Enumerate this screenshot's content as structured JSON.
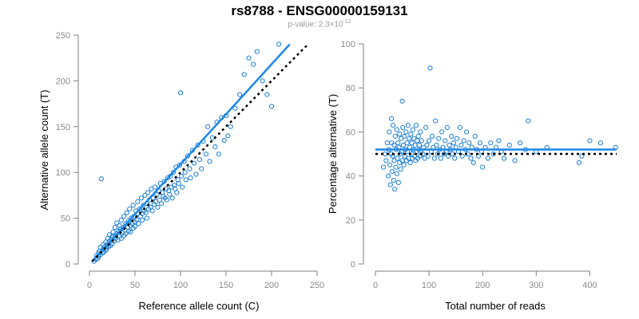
{
  "figure": {
    "title": "rs8788 - ENSG00000159131",
    "subtitle_prefix": "p-value: 2.3×10",
    "subtitle_exponent": "-12"
  },
  "colors": {
    "points": "#1e7fd6",
    "fit_line": "#1e88e5",
    "reference_line": "#000000",
    "axis": "#7f7f7f",
    "tick_label": "#8a8a8a"
  },
  "chart_data": [
    {
      "type": "scatter",
      "xlabel": "Reference allele count (C)",
      "ylabel": "Alternative allele count (T)",
      "xlim": [
        0,
        250
      ],
      "ylim": [
        0,
        250
      ],
      "xticks": [
        0,
        50,
        100,
        150,
        200,
        250
      ],
      "yticks": [
        0,
        50,
        100,
        150,
        200,
        250
      ],
      "grid": false,
      "lines": [
        {
          "name": "fit",
          "style": "solid",
          "x": [
            3,
            220
          ],
          "y": [
            3,
            240
          ]
        },
        {
          "name": "reference",
          "style": "dotted",
          "x": [
            3,
            240
          ],
          "y": [
            3,
            240
          ]
        }
      ],
      "points": [
        [
          5,
          3
        ],
        [
          7,
          5
        ],
        [
          8,
          9
        ],
        [
          9,
          6
        ],
        [
          10,
          12
        ],
        [
          10,
          8
        ],
        [
          11,
          14
        ],
        [
          12,
          10
        ],
        [
          12,
          18
        ],
        [
          13,
          93
        ],
        [
          14,
          12
        ],
        [
          15,
          16
        ],
        [
          15,
          21
        ],
        [
          16,
          13
        ],
        [
          17,
          19
        ],
        [
          18,
          15
        ],
        [
          18,
          24
        ],
        [
          19,
          17
        ],
        [
          20,
          22
        ],
        [
          20,
          28
        ],
        [
          21,
          19
        ],
        [
          22,
          25
        ],
        [
          22,
          32
        ],
        [
          23,
          20
        ],
        [
          24,
          27
        ],
        [
          25,
          30
        ],
        [
          25,
          22
        ],
        [
          26,
          35
        ],
        [
          27,
          25
        ],
        [
          28,
          31
        ],
        [
          28,
          40
        ],
        [
          29,
          28
        ],
        [
          30,
          33
        ],
        [
          30,
          45
        ],
        [
          31,
          26
        ],
        [
          32,
          36
        ],
        [
          33,
          30
        ],
        [
          33,
          42
        ],
        [
          34,
          38
        ],
        [
          35,
          28
        ],
        [
          35,
          48
        ],
        [
          36,
          34
        ],
        [
          37,
          40
        ],
        [
          38,
          31
        ],
        [
          38,
          52
        ],
        [
          39,
          37
        ],
        [
          40,
          44
        ],
        [
          40,
          33
        ],
        [
          41,
          56
        ],
        [
          42,
          40
        ],
        [
          43,
          36
        ],
        [
          43,
          47
        ],
        [
          44,
          60
        ],
        [
          45,
          42
        ],
        [
          45,
          35
        ],
        [
          46,
          50
        ],
        [
          47,
          44
        ],
        [
          48,
          64
        ],
        [
          48,
          39
        ],
        [
          49,
          52
        ],
        [
          50,
          46
        ],
        [
          50,
          41
        ],
        [
          51,
          58
        ],
        [
          52,
          48
        ],
        [
          53,
          55
        ],
        [
          53,
          68
        ],
        [
          54,
          44
        ],
        [
          55,
          60
        ],
        [
          56,
          52
        ],
        [
          57,
          72
        ],
        [
          58,
          55
        ],
        [
          58,
          48
        ],
        [
          59,
          64
        ],
        [
          60,
          58
        ],
        [
          61,
          75
        ],
        [
          62,
          56
        ],
        [
          63,
          66
        ],
        [
          63,
          50
        ],
        [
          64,
          78
        ],
        [
          65,
          60
        ],
        [
          66,
          70
        ],
        [
          67,
          62
        ],
        [
          68,
          82
        ],
        [
          69,
          58
        ],
        [
          70,
          72
        ],
        [
          71,
          65
        ],
        [
          72,
          84
        ],
        [
          73,
          68
        ],
        [
          74,
          76
        ],
        [
          75,
          62
        ],
        [
          76,
          80
        ],
        [
          77,
          70
        ],
        [
          78,
          88
        ],
        [
          79,
          66
        ],
        [
          80,
          78
        ],
        [
          81,
          74
        ],
        [
          82,
          90
        ],
        [
          83,
          72
        ],
        [
          84,
          82
        ],
        [
          85,
          70
        ],
        [
          86,
          94
        ],
        [
          87,
          80
        ],
        [
          88,
          76
        ],
        [
          89,
          96
        ],
        [
          90,
          84
        ],
        [
          91,
          72
        ],
        [
          92,
          100
        ],
        [
          93,
          86
        ],
        [
          94,
          82
        ],
        [
          95,
          106
        ],
        [
          96,
          78
        ],
        [
          97,
          92
        ],
        [
          98,
          88
        ],
        [
          99,
          108
        ],
        [
          100,
          187
        ],
        [
          101,
          96
        ],
        [
          102,
          84
        ],
        [
          104,
          112
        ],
        [
          105,
          100
        ],
        [
          106,
          92
        ],
        [
          108,
          118
        ],
        [
          110,
          104
        ],
        [
          111,
          94
        ],
        [
          113,
          124
        ],
        [
          115,
          110
        ],
        [
          117,
          98
        ],
        [
          119,
          130
        ],
        [
          121,
          114
        ],
        [
          123,
          104
        ],
        [
          125,
          134
        ],
        [
          128,
          120
        ],
        [
          130,
          150
        ],
        [
          132,
          112
        ],
        [
          135,
          138
        ],
        [
          138,
          128
        ],
        [
          140,
          155
        ],
        [
          142,
          120
        ],
        [
          145,
          160
        ],
        [
          148,
          135
        ],
        [
          150,
          162
        ],
        [
          152,
          140
        ],
        [
          155,
          150
        ],
        [
          160,
          170
        ],
        [
          165,
          185
        ],
        [
          170,
          207
        ],
        [
          175,
          225
        ],
        [
          180,
          218
        ],
        [
          184,
          232
        ],
        [
          190,
          200
        ],
        [
          195,
          185
        ],
        [
          200,
          172
        ],
        [
          208,
          240
        ]
      ]
    },
    {
      "type": "scatter",
      "xlabel": "Total number of reads",
      "ylabel": "Percentage alternative (T)",
      "xlim": [
        0,
        450
      ],
      "ylim": [
        0,
        100
      ],
      "xticks": [
        0,
        100,
        200,
        300,
        400
      ],
      "yticks": [
        0,
        20,
        40,
        60,
        80,
        100
      ],
      "grid": false,
      "lines": [
        {
          "name": "fit",
          "style": "solid",
          "x": [
            0,
            450
          ],
          "y": [
            52,
            52
          ]
        },
        {
          "name": "reference",
          "style": "dotted",
          "x": [
            0,
            450
          ],
          "y": [
            50,
            50
          ]
        }
      ],
      "points": [
        [
          15,
          44
        ],
        [
          18,
          50
        ],
        [
          20,
          47
        ],
        [
          22,
          55
        ],
        [
          24,
          40
        ],
        [
          25,
          52
        ],
        [
          26,
          60
        ],
        [
          27,
          45
        ],
        [
          28,
          36
        ],
        [
          29,
          50
        ],
        [
          30,
          66
        ],
        [
          30,
          55
        ],
        [
          31,
          42
        ],
        [
          32,
          49
        ],
        [
          33,
          63
        ],
        [
          34,
          38
        ],
        [
          35,
          54
        ],
        [
          35,
          47
        ],
        [
          36,
          34
        ],
        [
          37,
          58
        ],
        [
          38,
          44
        ],
        [
          39,
          52
        ],
        [
          40,
          41
        ],
        [
          40,
          61
        ],
        [
          41,
          48
        ],
        [
          42,
          55
        ],
        [
          43,
          37
        ],
        [
          44,
          53
        ],
        [
          45,
          46
        ],
        [
          45,
          59
        ],
        [
          46,
          50
        ],
        [
          47,
          43
        ],
        [
          48,
          57
        ],
        [
          49,
          51
        ],
        [
          50,
          74
        ],
        [
          50,
          47
        ],
        [
          51,
          62
        ],
        [
          52,
          54
        ],
        [
          53,
          45
        ],
        [
          54,
          58
        ],
        [
          55,
          49
        ],
        [
          56,
          52
        ],
        [
          57,
          60
        ],
        [
          58,
          47
        ],
        [
          59,
          55
        ],
        [
          60,
          51
        ],
        [
          61,
          63
        ],
        [
          62,
          48
        ],
        [
          63,
          57
        ],
        [
          64,
          53
        ],
        [
          65,
          46
        ],
        [
          66,
          59
        ],
        [
          67,
          50
        ],
        [
          68,
          55
        ],
        [
          69,
          48
        ],
        [
          70,
          61
        ],
        [
          71,
          52
        ],
        [
          72,
          57
        ],
        [
          73,
          49
        ],
        [
          74,
          54
        ],
        [
          75,
          47
        ],
        [
          76,
          63
        ],
        [
          77,
          51
        ],
        [
          78,
          56
        ],
        [
          79,
          48
        ],
        [
          80,
          58
        ],
        [
          81,
          52
        ],
        [
          82,
          54
        ],
        [
          83,
          49
        ],
        [
          84,
          60
        ],
        [
          85,
          51
        ],
        [
          86,
          56
        ],
        [
          88,
          50
        ],
        [
          90,
          53
        ],
        [
          92,
          48
        ],
        [
          94,
          62
        ],
        [
          96,
          54
        ],
        [
          98,
          49
        ],
        [
          100,
          56
        ],
        [
          102,
          89
        ],
        [
          104,
          51
        ],
        [
          106,
          58
        ],
        [
          108,
          53
        ],
        [
          110,
          48
        ],
        [
          112,
          65
        ],
        [
          114,
          54
        ],
        [
          116,
          50
        ],
        [
          118,
          57
        ],
        [
          120,
          52
        ],
        [
          122,
          48
        ],
        [
          124,
          60
        ],
        [
          126,
          53
        ],
        [
          128,
          50
        ],
        [
          130,
          56
        ],
        [
          132,
          51
        ],
        [
          134,
          62
        ],
        [
          136,
          49
        ],
        [
          138,
          54
        ],
        [
          140,
          52
        ],
        [
          142,
          58
        ],
        [
          144,
          50
        ],
        [
          146,
          55
        ],
        [
          148,
          48
        ],
        [
          150,
          53
        ],
        [
          152,
          57
        ],
        [
          155,
          51
        ],
        [
          158,
          62
        ],
        [
          160,
          54
        ],
        [
          162,
          49
        ],
        [
          165,
          56
        ],
        [
          168,
          52
        ],
        [
          170,
          60
        ],
        [
          172,
          50
        ],
        [
          175,
          55
        ],
        [
          178,
          48
        ],
        [
          180,
          53
        ],
        [
          183,
          46
        ],
        [
          186,
          58
        ],
        [
          189,
          52
        ],
        [
          192,
          49
        ],
        [
          195,
          55
        ],
        [
          198,
          51
        ],
        [
          200,
          44
        ],
        [
          205,
          53
        ],
        [
          210,
          48
        ],
        [
          215,
          55
        ],
        [
          220,
          50
        ],
        [
          225,
          53
        ],
        [
          230,
          56
        ],
        [
          235,
          51
        ],
        [
          240,
          48
        ],
        [
          250,
          54
        ],
        [
          260,
          47
        ],
        [
          270,
          55
        ],
        [
          280,
          52
        ],
        [
          285,
          65
        ],
        [
          300,
          51
        ],
        [
          320,
          53
        ],
        [
          380,
          46
        ],
        [
          385,
          49
        ],
        [
          400,
          56
        ],
        [
          420,
          55
        ],
        [
          448,
          53
        ]
      ]
    }
  ]
}
